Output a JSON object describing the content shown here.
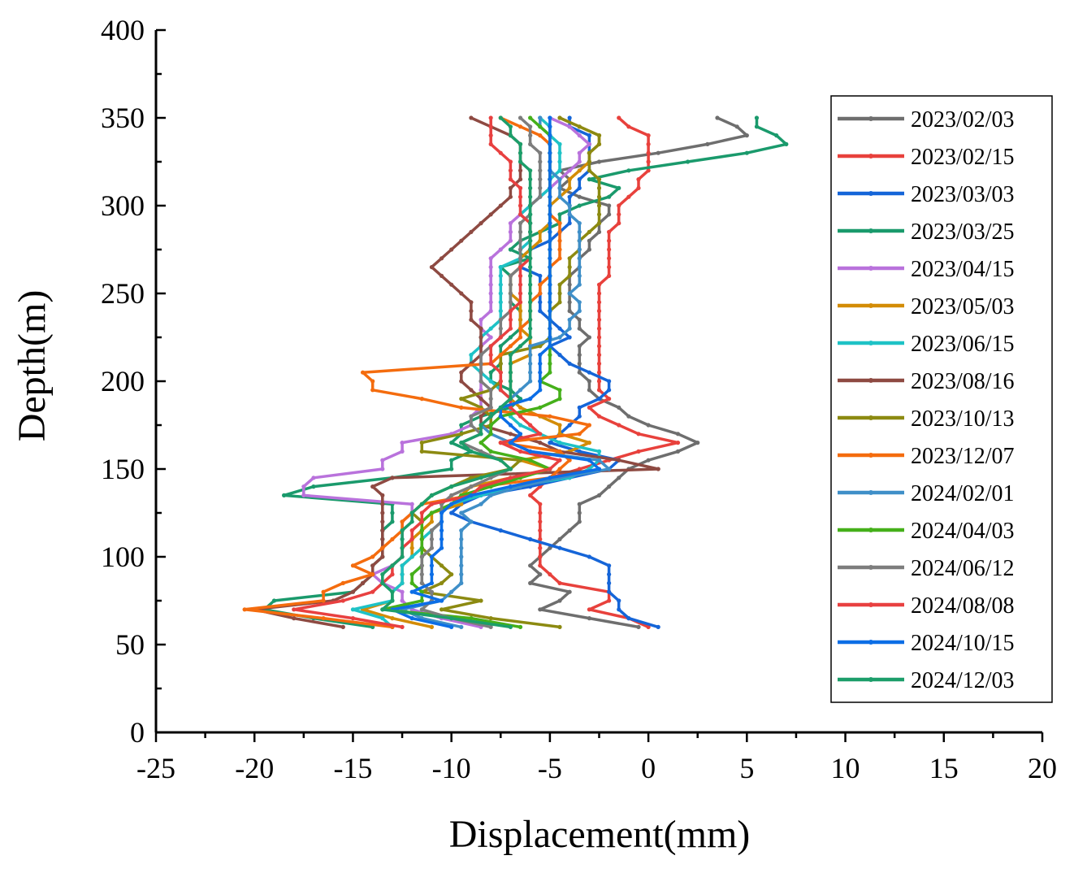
{
  "chart_data": {
    "type": "line",
    "title": "",
    "xlabel": "Displacement(mm)",
    "ylabel": "Depth(m)",
    "xlim": [
      -25,
      20
    ],
    "ylim": [
      0,
      400
    ],
    "x_ticks": [
      "-25",
      "-20",
      "-15",
      "-10",
      "-5",
      "0",
      "5",
      "10",
      "15",
      "20"
    ],
    "y_ticks": [
      "0",
      "50",
      "100",
      "150",
      "200",
      "250",
      "300",
      "350",
      "400"
    ],
    "grid": false,
    "legend_position": "right",
    "depths": [
      60,
      65,
      70,
      75,
      80,
      85,
      90,
      95,
      100,
      105,
      110,
      115,
      120,
      125,
      130,
      135,
      140,
      145,
      150,
      155,
      160,
      165,
      170,
      175,
      180,
      185,
      190,
      195,
      200,
      205,
      210,
      215,
      220,
      225,
      230,
      235,
      240,
      245,
      250,
      255,
      260,
      265,
      270,
      275,
      280,
      285,
      290,
      295,
      300,
      305,
      310,
      315,
      320,
      325,
      330,
      335,
      340,
      345,
      350
    ],
    "series": [
      {
        "name": "2023/02/03",
        "color": "#6e6e6e",
        "values": [
          -0.5,
          -3.0,
          -5.5,
          -4.5,
          -4.0,
          -6.0,
          -5.5,
          -6.0,
          -5.5,
          -5.0,
          -4.5,
          -4.0,
          -3.5,
          -3.5,
          -3.5,
          -2.5,
          -2.0,
          -1.5,
          -1.0,
          0.0,
          1.5,
          2.5,
          1.5,
          0.0,
          -1.0,
          -1.5,
          -2.5,
          -3.0,
          -3.0,
          -3.5,
          -3.5,
          -3.5,
          -3.5,
          -3.0,
          -3.5,
          -3.5,
          -4.0,
          -4.0,
          -4.0,
          -4.0,
          -4.0,
          -3.5,
          -3.5,
          -3.0,
          -3.0,
          -2.5,
          -2.5,
          -2.0,
          -2.0,
          -3.5,
          -4.5,
          -4.0,
          -4.5,
          -2.5,
          0.5,
          3.0,
          5.0,
          4.5,
          3.5
        ]
      },
      {
        "name": "2023/02/15",
        "color": "#e8413c",
        "values": [
          0.0,
          -1.0,
          -3.0,
          -2.0,
          -2.0,
          -4.5,
          -5.0,
          -5.5,
          -5.5,
          -5.5,
          -5.5,
          -5.5,
          -5.5,
          -5.5,
          -5.5,
          -6.0,
          -5.5,
          -5.0,
          -3.5,
          -2.0,
          -0.5,
          1.5,
          -0.5,
          -1.5,
          -2.5,
          -3.0,
          -2.0,
          -2.5,
          -2.5,
          -2.5,
          -2.5,
          -2.5,
          -2.5,
          -2.5,
          -2.5,
          -2.5,
          -2.5,
          -2.5,
          -2.5,
          -2.5,
          -2.0,
          -2.0,
          -2.0,
          -2.0,
          -2.0,
          -2.0,
          -1.5,
          -1.5,
          -1.5,
          -1.0,
          -0.5,
          -0.5,
          0.0,
          0.0,
          0.0,
          0.0,
          0.0,
          -1.0,
          -1.5
        ]
      },
      {
        "name": "2023/03/03",
        "color": "#1565d8",
        "values": [
          0.5,
          -1.0,
          -1.5,
          -1.5,
          -2.0,
          -2.0,
          -2.0,
          -2.0,
          -3.0,
          -4.5,
          -6.0,
          -7.5,
          -9.0,
          -10.0,
          -9.5,
          -8.5,
          -6.0,
          -4.0,
          -2.0,
          -1.5,
          -3.5,
          -5.0,
          -4.5,
          -4.0,
          -3.5,
          -3.5,
          -2.5,
          -2.0,
          -2.0,
          -3.0,
          -4.0,
          -4.5,
          -5.0,
          -4.0,
          -4.5,
          -5.0,
          -5.5,
          -5.5,
          -5.5,
          -5.5,
          -5.5,
          -6.5,
          -6.5,
          -6.0,
          -5.0,
          -4.5,
          -4.0,
          -4.0,
          -4.0,
          -4.0,
          -3.5,
          -3.5,
          -3.0,
          -3.0,
          -3.0,
          -3.0,
          -3.0,
          -4.0,
          -4.0
        ]
      },
      {
        "name": "2023/03/25",
        "color": "#1a9a6c",
        "values": [
          -14.0,
          -17.0,
          -19.5,
          -19.0,
          -15.0,
          -14.5,
          -14.0,
          -14.0,
          -13.5,
          -13.5,
          -13.5,
          -13.5,
          -13.0,
          -13.0,
          -13.0,
          -18.5,
          -17.0,
          -13.0,
          -10.0,
          -10.0,
          -9.0,
          -10.0,
          -9.5,
          -9.5,
          -8.5,
          -7.0,
          -6.5,
          -7.0,
          -8.0,
          -8.0,
          -7.5,
          -7.5,
          -7.5,
          -7.0,
          -6.5,
          -6.5,
          -6.5,
          -7.0,
          -7.0,
          -7.0,
          -7.0,
          -7.5,
          -6.0,
          -7.0,
          -6.5,
          -5.5,
          -4.5,
          -4.5,
          -3.5,
          -2.0,
          -1.5,
          -3.0,
          -1.0,
          2.0,
          5.0,
          7.0,
          6.5,
          5.5,
          5.5
        ]
      },
      {
        "name": "2023/04/15",
        "color": "#b972dc",
        "values": [
          -8.5,
          -10.5,
          -12.0,
          -12.5,
          -12.5,
          -13.5,
          -14.0,
          -13.0,
          -12.5,
          -12.5,
          -12.5,
          -12.5,
          -12.5,
          -12.0,
          -12.0,
          -17.5,
          -17.5,
          -17.0,
          -13.5,
          -13.5,
          -12.5,
          -12.5,
          -10.0,
          -9.0,
          -9.0,
          -8.5,
          -8.5,
          -8.5,
          -8.5,
          -8.5,
          -8.5,
          -8.5,
          -8.5,
          -8.0,
          -8.5,
          -8.5,
          -8.0,
          -8.0,
          -8.0,
          -8.0,
          -8.0,
          -8.0,
          -8.0,
          -7.5,
          -7.0,
          -7.0,
          -7.0,
          -6.5,
          -6.0,
          -5.5,
          -5.0,
          -4.5,
          -4.0,
          -3.5,
          -3.5,
          -3.0,
          -3.5,
          -4.0,
          -5.0
        ]
      },
      {
        "name": "2023/05/03",
        "color": "#d38c06",
        "values": [
          -11.0,
          -13.0,
          -14.5,
          -13.0,
          -13.0,
          -12.5,
          -12.5,
          -12.5,
          -12.0,
          -12.0,
          -12.0,
          -11.5,
          -11.0,
          -11.0,
          -9.5,
          -9.5,
          -9.0,
          -7.0,
          -5.0,
          -6.5,
          -4.0,
          -3.0,
          -4.5,
          -4.5,
          -5.5,
          -6.5,
          -7.0,
          -7.0,
          -7.0,
          -7.0,
          -7.0,
          -6.0,
          -6.0,
          -6.0,
          -6.5,
          -6.5,
          -6.5,
          -6.5,
          -7.0,
          -7.0,
          -7.0,
          -6.5,
          -6.5,
          -6.0,
          -5.5,
          -5.5,
          -5.0,
          -5.0,
          -5.0,
          -4.5,
          -4.0,
          -4.0,
          -3.5,
          -3.0,
          -3.0,
          -2.5,
          -2.5,
          -3.5,
          -4.5
        ]
      },
      {
        "name": "2023/06/15",
        "color": "#1ec2c6",
        "values": [
          -13.0,
          -13.5,
          -15.0,
          -13.0,
          -13.0,
          -12.5,
          -12.5,
          -12.5,
          -12.0,
          -11.5,
          -11.5,
          -11.0,
          -10.5,
          -10.5,
          -10.0,
          -8.5,
          -7.0,
          -4.0,
          -3.0,
          -2.5,
          -2.5,
          -4.5,
          -5.5,
          -6.5,
          -7.0,
          -7.0,
          -7.0,
          -7.5,
          -8.0,
          -8.5,
          -9.0,
          -9.0,
          -8.5,
          -8.5,
          -8.0,
          -7.5,
          -7.5,
          -7.5,
          -7.5,
          -7.5,
          -7.5,
          -7.5,
          -6.5,
          -6.5,
          -6.0,
          -6.0,
          -6.0,
          -6.5,
          -6.0,
          -5.5,
          -5.0,
          -5.0,
          -4.5,
          -4.5,
          -4.5,
          -4.5,
          -5.0,
          -5.0,
          -5.5
        ]
      },
      {
        "name": "2023/08/16",
        "color": "#8e4a42",
        "values": [
          -15.5,
          -18.0,
          -20.0,
          -16.0,
          -15.0,
          -14.5,
          -14.0,
          -14.0,
          -13.5,
          -13.5,
          -13.5,
          -13.5,
          -13.5,
          -13.5,
          -13.5,
          -13.5,
          -14.0,
          -13.0,
          0.5,
          -1.5,
          -4.5,
          -5.5,
          -7.0,
          -8.5,
          -8.5,
          -8.0,
          -8.5,
          -9.0,
          -9.5,
          -9.5,
          -9.0,
          -8.5,
          -8.5,
          -8.5,
          -8.5,
          -9.0,
          -9.0,
          -9.0,
          -9.5,
          -10.0,
          -10.5,
          -11.0,
          -10.5,
          -10.0,
          -9.5,
          -9.0,
          -8.5,
          -8.0,
          -7.5,
          -7.0,
          -7.0,
          -6.5,
          -6.5,
          -6.5,
          -6.5,
          -6.5,
          -7.0,
          -8.0,
          -9.0
        ]
      },
      {
        "name": "2023/10/13",
        "color": "#8c8a11",
        "values": [
          -4.5,
          -8.0,
          -10.5,
          -8.5,
          -11.5,
          -10.5,
          -10.0,
          -10.5,
          -11.0,
          -11.5,
          -11.5,
          -11.5,
          -11.5,
          -12.0,
          -11.5,
          -11.0,
          -10.0,
          -9.0,
          -7.0,
          -6.5,
          -11.5,
          -11.5,
          -9.5,
          -8.0,
          -8.0,
          -8.5,
          -9.5,
          -8.0,
          -7.5,
          -7.5,
          -7.5,
          -7.5,
          -5.5,
          -5.0,
          -5.0,
          -5.0,
          -5.0,
          -4.5,
          -4.5,
          -4.5,
          -4.0,
          -4.0,
          -4.0,
          -3.5,
          -3.5,
          -3.0,
          -2.5,
          -2.5,
          -2.5,
          -2.5,
          -2.5,
          -2.5,
          -3.0,
          -3.0,
          -3.0,
          -2.5,
          -2.5,
          -3.5,
          -4.5
        ]
      },
      {
        "name": "2023/12/07",
        "color": "#f46c0e",
        "values": [
          -13.0,
          -16.5,
          -20.5,
          -16.5,
          -16.5,
          -15.5,
          -14.0,
          -15.0,
          -14.0,
          -13.5,
          -13.0,
          -12.5,
          -12.5,
          -12.0,
          -11.5,
          -9.0,
          -8.5,
          -5.0,
          -4.5,
          -4.0,
          -4.5,
          -7.5,
          -3.5,
          -3.0,
          -5.0,
          -9.5,
          -11.5,
          -14.0,
          -14.0,
          -14.5,
          -8.0,
          -7.5,
          -7.0,
          -6.5,
          -6.5,
          -6.0,
          -6.0,
          -6.0,
          -5.5,
          -5.5,
          -5.0,
          -5.0,
          -4.5,
          -4.5,
          -4.5,
          -4.5,
          -4.5,
          -5.0,
          -5.0,
          -5.0,
          -5.0,
          -5.0,
          -5.0,
          -5.0,
          -5.0,
          -5.0,
          -5.5,
          -6.5,
          -7.5
        ]
      },
      {
        "name": "2024/02/01",
        "color": "#3f8fc8",
        "values": [
          -9.5,
          -11.5,
          -12.5,
          -10.5,
          -10.0,
          -9.5,
          -9.5,
          -9.5,
          -9.5,
          -9.5,
          -9.5,
          -9.5,
          -9.0,
          -9.5,
          -8.5,
          -8.0,
          -6.5,
          -4.5,
          -2.0,
          -2.5,
          -6.0,
          -7.0,
          -8.0,
          -8.5,
          -8.0,
          -7.5,
          -7.0,
          -6.5,
          -6.0,
          -6.0,
          -6.0,
          -6.0,
          -6.0,
          -4.5,
          -4.0,
          -4.0,
          -3.5,
          -3.5,
          -4.0,
          -3.5,
          -3.5,
          -3.5,
          -3.5,
          -3.5,
          -3.5,
          -3.5,
          -3.5,
          -4.0,
          -4.0,
          -4.5,
          -4.5,
          -4.5,
          -5.0,
          -5.0,
          -5.0,
          -5.0,
          -5.0,
          -5.5,
          -5.5
        ]
      },
      {
        "name": "2024/04/03",
        "color": "#45b01a",
        "values": [
          -6.5,
          -9.0,
          -13.5,
          -11.5,
          -11.5,
          -12.0,
          -12.0,
          -11.5,
          -11.5,
          -11.5,
          -11.5,
          -11.5,
          -11.5,
          -11.0,
          -10.0,
          -9.5,
          -8.0,
          -6.5,
          -5.0,
          -6.0,
          -8.0,
          -8.5,
          -8.0,
          -8.0,
          -7.5,
          -5.5,
          -4.5,
          -4.5,
          -5.5,
          -5.0,
          -5.0,
          -5.0,
          -5.0,
          -5.0,
          -5.0,
          -5.0,
          -5.0,
          -5.0,
          -5.0,
          -5.0,
          -5.0,
          -5.0,
          -5.0,
          -5.0,
          -5.0,
          -5.0,
          -5.0,
          -5.0,
          -5.0,
          -5.0,
          -5.0,
          -5.0,
          -5.0,
          -5.0,
          -5.0,
          -5.0,
          -5.0,
          -5.5,
          -6.0
        ]
      },
      {
        "name": "2024/06/12",
        "color": "#7d7d7d",
        "values": [
          -8.0,
          -10.0,
          -11.5,
          -11.0,
          -11.0,
          -11.5,
          -11.5,
          -11.5,
          -11.5,
          -11.0,
          -11.0,
          -11.0,
          -10.5,
          -10.5,
          -10.5,
          -10.0,
          -9.0,
          -8.0,
          -7.0,
          -7.5,
          -8.5,
          -9.5,
          -8.5,
          -9.0,
          -9.0,
          -8.0,
          -8.0,
          -8.0,
          -8.5,
          -8.5,
          -8.5,
          -8.5,
          -8.0,
          -7.5,
          -7.5,
          -7.5,
          -7.0,
          -7.0,
          -7.0,
          -7.0,
          -7.0,
          -6.5,
          -6.5,
          -6.5,
          -6.5,
          -6.5,
          -6.5,
          -6.0,
          -6.0,
          -5.5,
          -5.5,
          -5.5,
          -5.5,
          -5.5,
          -5.5,
          -6.0,
          -6.0,
          -6.0,
          -6.5
        ]
      },
      {
        "name": "2024/08/08",
        "color": "#e84040",
        "values": [
          -12.5,
          -15.0,
          -18.0,
          -15.5,
          -14.0,
          -13.5,
          -13.0,
          -13.0,
          -12.5,
          -12.5,
          -12.0,
          -12.0,
          -11.5,
          -11.5,
          -11.0,
          -9.0,
          -8.5,
          -7.0,
          -5.0,
          -4.5,
          -6.5,
          -7.5,
          -5.5,
          -6.0,
          -6.5,
          -7.0,
          -7.0,
          -7.5,
          -7.5,
          -7.5,
          -8.0,
          -8.0,
          -8.0,
          -7.5,
          -7.0,
          -7.0,
          -7.0,
          -6.5,
          -6.5,
          -6.5,
          -6.5,
          -6.5,
          -6.0,
          -6.0,
          -6.0,
          -6.0,
          -6.0,
          -6.5,
          -6.5,
          -6.5,
          -6.5,
          -7.0,
          -7.0,
          -7.0,
          -7.5,
          -8.0,
          -8.0,
          -8.0,
          -8.0
        ]
      },
      {
        "name": "2024/10/15",
        "color": "#0c6ee6",
        "values": [
          -10.0,
          -12.0,
          -13.0,
          -10.5,
          -12.0,
          -11.0,
          -11.0,
          -11.0,
          -11.0,
          -10.5,
          -10.5,
          -10.5,
          -10.5,
          -10.5,
          -10.0,
          -9.0,
          -7.0,
          -5.0,
          -2.5,
          -3.0,
          -6.0,
          -7.0,
          -6.5,
          -7.0,
          -7.5,
          -7.5,
          -6.0,
          -5.5,
          -5.5,
          -5.5,
          -5.5,
          -5.5,
          -5.0,
          -5.0,
          -5.0,
          -5.0,
          -5.0,
          -5.0,
          -5.0,
          -5.0,
          -5.0,
          -5.0,
          -5.0,
          -5.0,
          -5.0,
          -5.0,
          -5.0,
          -5.0,
          -5.0,
          -5.0,
          -5.0,
          -5.0,
          -5.0,
          -5.0,
          -5.0,
          -5.0,
          -5.0,
          -5.0,
          -5.0
        ]
      },
      {
        "name": "2024/12/03",
        "color": "#1c9e6a",
        "values": [
          -7.0,
          -10.0,
          -13.5,
          -13.0,
          -13.0,
          -13.5,
          -13.5,
          -13.0,
          -12.5,
          -12.5,
          -12.5,
          -12.5,
          -12.0,
          -12.0,
          -11.5,
          -11.0,
          -10.0,
          -8.5,
          -7.0,
          -7.5,
          -9.0,
          -9.5,
          -8.5,
          -8.5,
          -8.0,
          -7.5,
          -7.0,
          -7.0,
          -7.0,
          -7.0,
          -7.0,
          -7.0,
          -6.5,
          -6.0,
          -6.0,
          -6.0,
          -6.0,
          -6.0,
          -6.0,
          -6.0,
          -6.0,
          -6.0,
          -6.0,
          -6.0,
          -6.0,
          -6.0,
          -6.0,
          -6.0,
          -6.0,
          -6.0,
          -6.0,
          -6.0,
          -6.0,
          -6.5,
          -6.5,
          -6.5,
          -7.0,
          -7.0,
          -7.5
        ]
      }
    ]
  }
}
